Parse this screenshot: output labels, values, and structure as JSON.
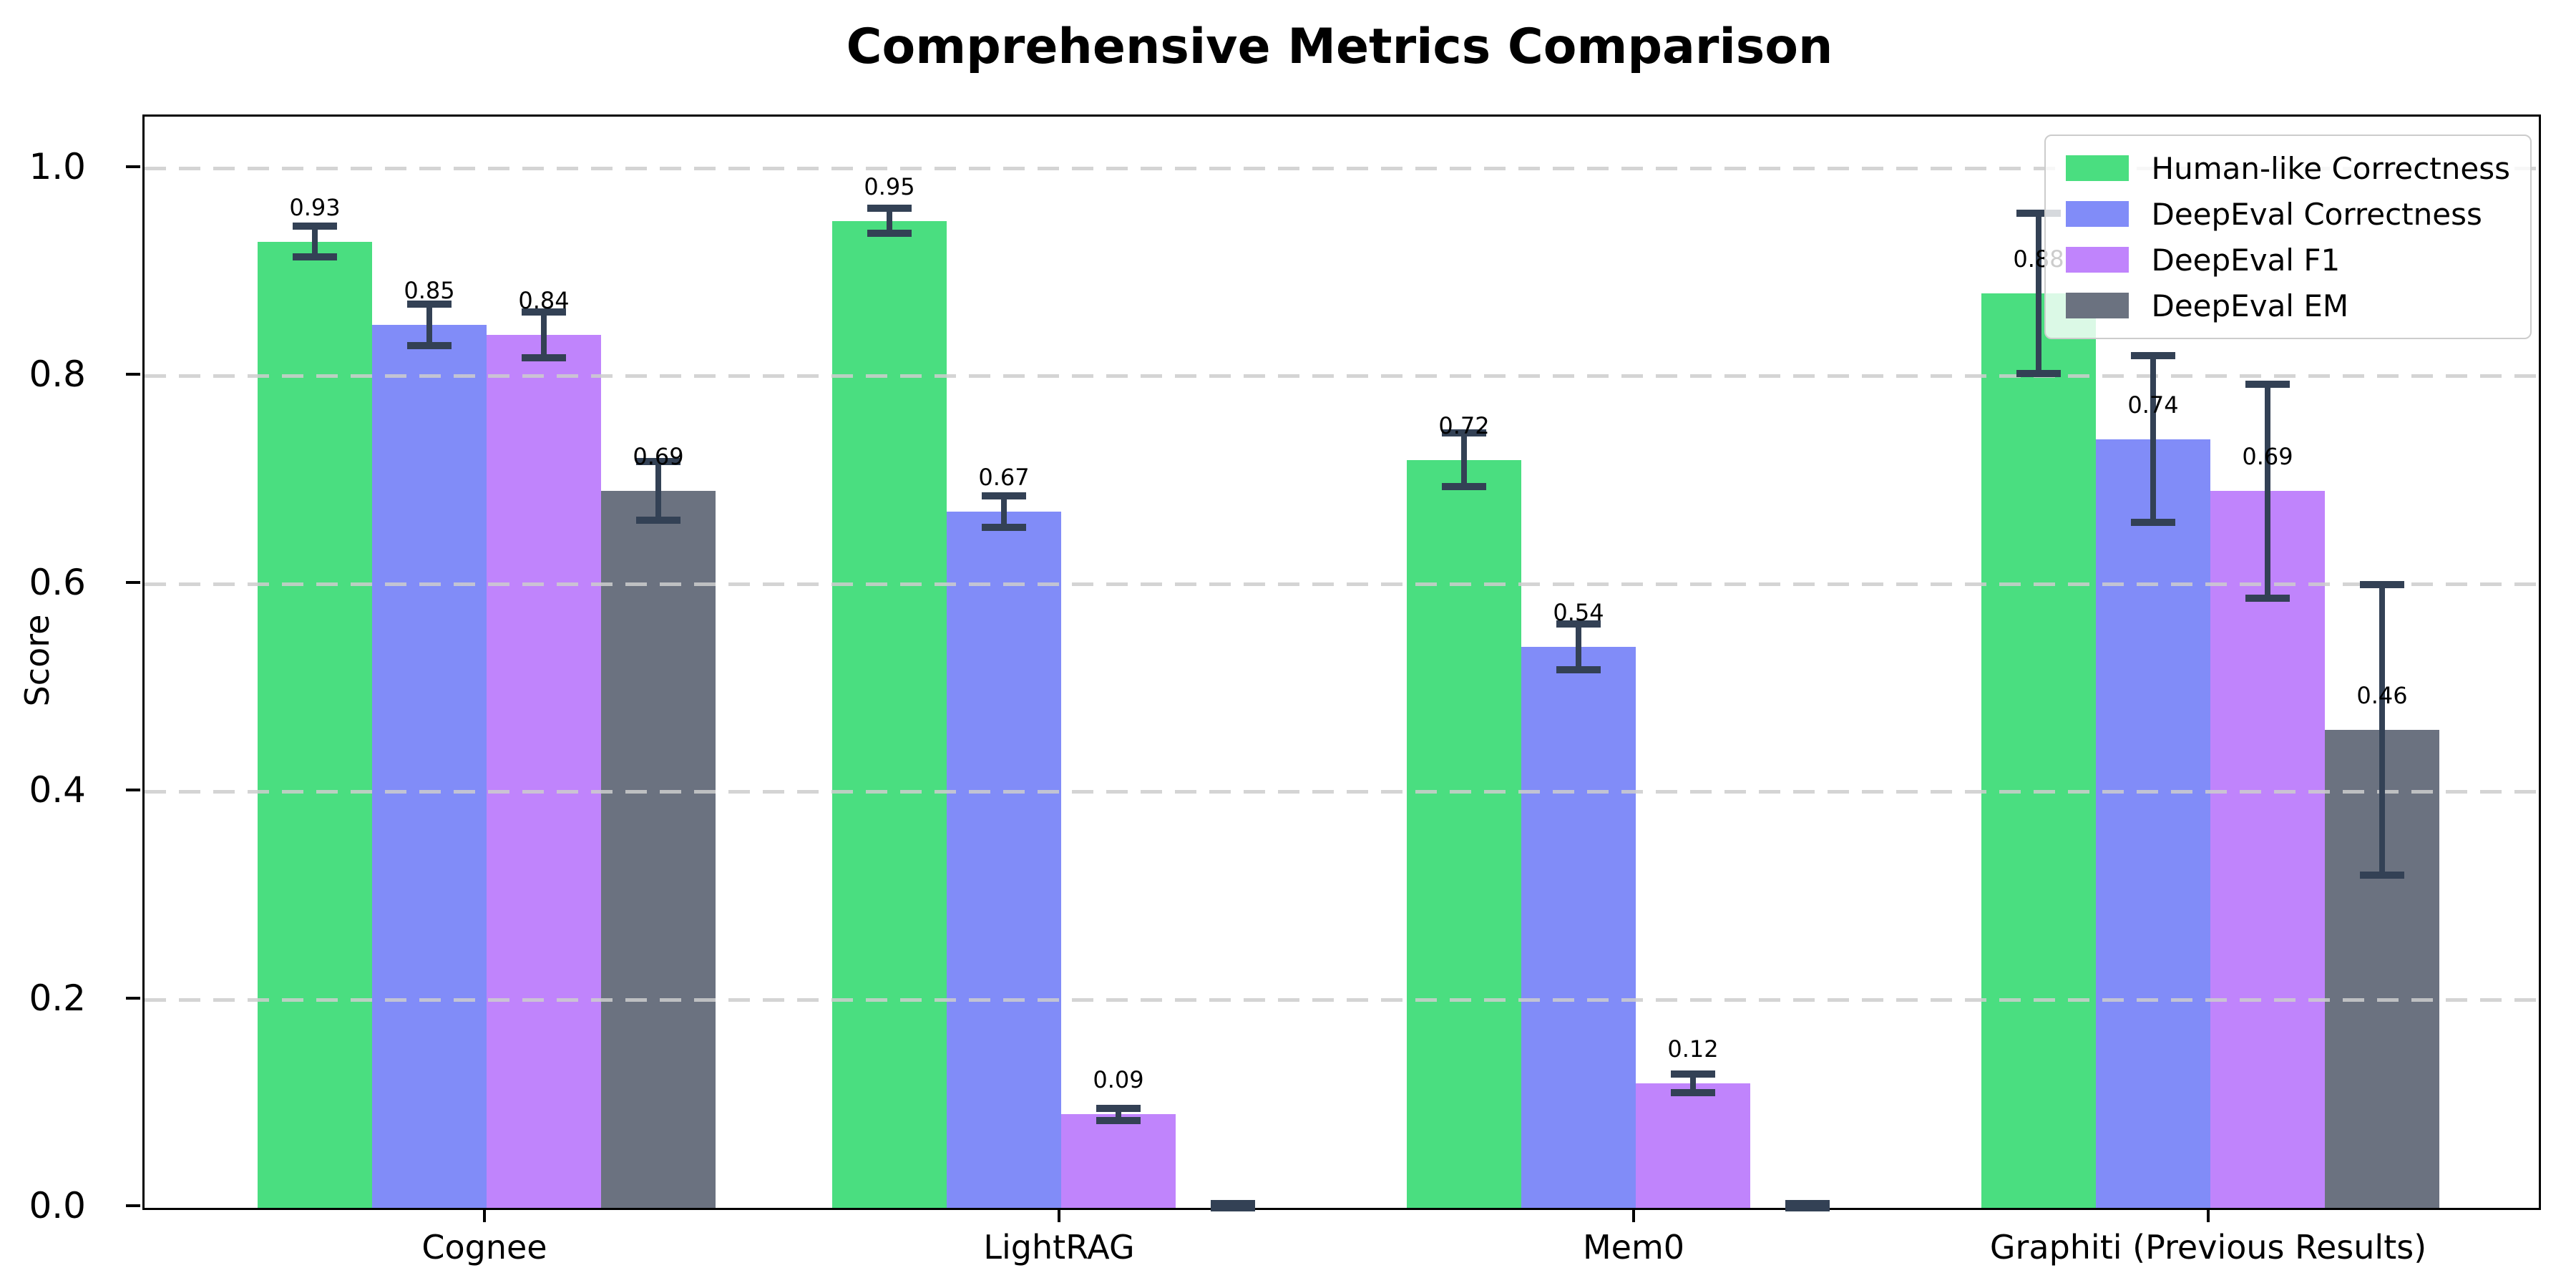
{
  "chart_data": {
    "type": "bar",
    "title": "Comprehensive Metrics Comparison",
    "xlabel": "",
    "ylabel": "Score",
    "categories": [
      "Cognee",
      "LightRAG",
      "Mem0",
      "Graphiti (Previous Results)"
    ],
    "series": [
      {
        "name": "Human-like Correctness",
        "color": "#4ade80",
        "values": [
          0.93,
          0.95,
          0.72,
          0.88
        ],
        "errors": [
          0.015,
          0.012,
          0.026,
          0.077
        ],
        "labels": [
          "0.93",
          "0.95",
          "0.72",
          "0.88"
        ]
      },
      {
        "name": "DeepEval Correctness",
        "color": "#818cf8",
        "values": [
          0.85,
          0.67,
          0.54,
          0.74
        ],
        "errors": [
          0.02,
          0.015,
          0.022,
          0.08
        ],
        "labels": [
          "0.85",
          "0.67",
          "0.54",
          "0.74"
        ]
      },
      {
        "name": "DeepEval F1",
        "color": "#c084fc",
        "values": [
          0.84,
          0.09,
          0.12,
          0.69
        ],
        "errors": [
          0.022,
          0.006,
          0.009,
          0.103
        ],
        "labels": [
          "0.84",
          "0.09",
          "0.12",
          "0.69"
        ]
      },
      {
        "name": "DeepEval EM",
        "color": "#6b7280",
        "values": [
          0.69,
          0.0,
          0.0,
          0.46
        ],
        "errors": [
          0.028,
          0.004,
          0.004,
          0.14
        ],
        "labels": [
          "0.69",
          null,
          null,
          "0.46"
        ]
      }
    ],
    "yticks": [
      "0.0",
      "0.2",
      "0.4",
      "0.6",
      "0.8",
      "1.0"
    ],
    "ylim": [
      0,
      1.05
    ],
    "grid": "horizontal-dashed",
    "gridline_color": "#cdcdcd",
    "error_bar_color": "#334155",
    "axis_color": "#000000",
    "legend_position": "upper right",
    "bar_label_color": "#000000"
  }
}
